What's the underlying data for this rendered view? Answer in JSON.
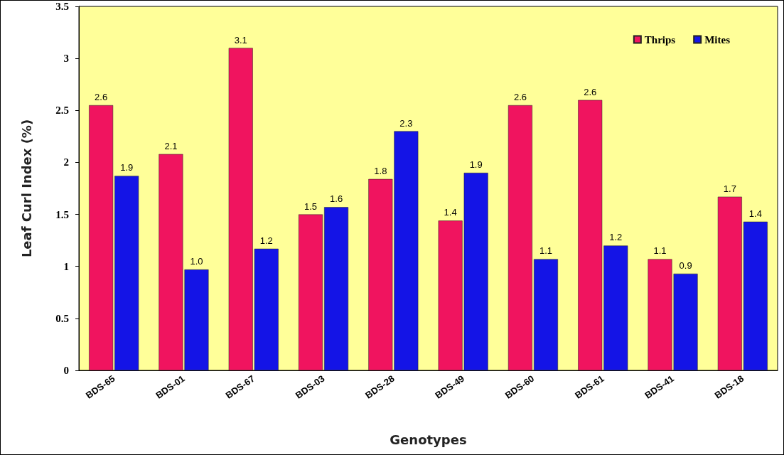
{
  "chart_data": {
    "type": "bar",
    "xlabel": "Genotypes",
    "ylabel": "Leaf Curl Index (%)",
    "categories": [
      "BDS-65",
      "BDS-01",
      "BDS-67",
      "BDS-03",
      "BDS-28",
      "BDS-49",
      "BDS-60",
      "BDS-61",
      "BDS-41",
      "BDS-18"
    ],
    "series": [
      {
        "name": "Thrips",
        "color": "#f0145f",
        "values": [
          2.55,
          2.08,
          3.1,
          1.5,
          1.84,
          1.44,
          2.55,
          2.6,
          1.07,
          1.67
        ],
        "value_labels": [
          "2.6",
          "2.1",
          "3.1",
          "1.5",
          "1.8",
          "1.4",
          "2.6",
          "2.6",
          "1.1",
          "1.7"
        ]
      },
      {
        "name": "Mites",
        "color": "#1414e6",
        "values": [
          1.87,
          0.97,
          1.17,
          1.57,
          2.3,
          1.9,
          1.07,
          1.2,
          0.93,
          1.43
        ],
        "value_labels": [
          "1.9",
          "1.0",
          "1.2",
          "1.6",
          "2.3",
          "1.9",
          "1.1",
          "1.2",
          "0.9",
          "1.4"
        ]
      }
    ],
    "ylim": [
      0,
      3.5
    ],
    "yticks": [
      0,
      0.5,
      1,
      1.5,
      2,
      2.5,
      3,
      3.5
    ],
    "grid": false,
    "legend": "top right"
  }
}
